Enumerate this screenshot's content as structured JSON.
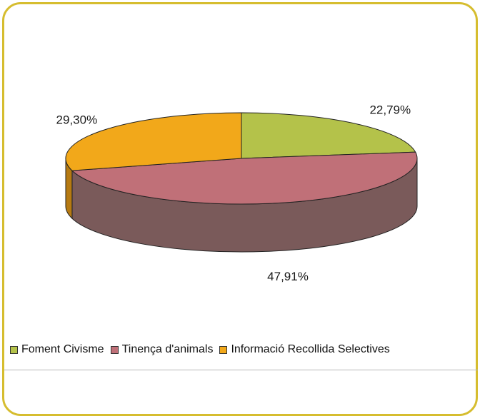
{
  "chart_data": {
    "type": "pie",
    "style": "3d",
    "categories": [
      "Foment Civisme",
      "Tinença d'animals",
      "Informació Recollida Selectives"
    ],
    "values": [
      22.79,
      47.91,
      29.3
    ],
    "labels": [
      "22,79%",
      "47,91%",
      "29,30%"
    ],
    "colors": [
      "#b4c24a",
      "#c07078",
      "#f2a81a"
    ],
    "side_colors": [
      "#7e8a30",
      "#7a5a5a",
      "#b67a12"
    ],
    "legend_position": "bottom"
  },
  "legend": {
    "items": [
      {
        "label": "Foment Civisme",
        "color": "#b4c24a"
      },
      {
        "label": "Tinença d'animals",
        "color": "#c07078"
      },
      {
        "label": "Informació Recollida Selectives",
        "color": "#f2a81a"
      }
    ]
  },
  "colors": {
    "frame_border": "#d6bd2f"
  }
}
